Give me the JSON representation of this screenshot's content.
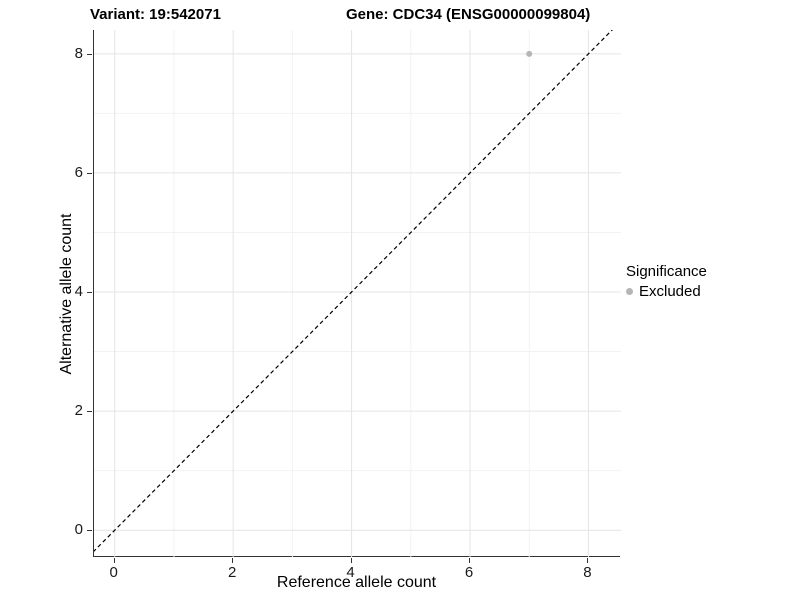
{
  "header": {
    "title_left": "Variant: 19:542071",
    "title_right": "Gene: CDC34 (ENSG00000099804)"
  },
  "chart_data": {
    "type": "scatter",
    "title_left": "Variant: 19:542071",
    "title_right": "Gene: CDC34 (ENSG00000099804)",
    "xlabel": "Reference allele count",
    "ylabel": "Alternative allele count",
    "xlim": [
      -0.35,
      8.55
    ],
    "ylim": [
      -0.45,
      8.4
    ],
    "x_ticks": [
      0,
      2,
      4,
      6,
      8
    ],
    "y_ticks": [
      0,
      2,
      4,
      6,
      8
    ],
    "x_minor_ticks": [
      1,
      3,
      5,
      7
    ],
    "y_minor_ticks": [
      1,
      3,
      5,
      7
    ],
    "grid": true,
    "grid_major_color": "#e4e4e4",
    "grid_minor_color": "#f2f2f2",
    "identity_line": {
      "style": "dashed",
      "color": "#000000",
      "slope": 1,
      "intercept": 0
    },
    "series": [
      {
        "name": "Excluded",
        "color": "#b5b5b5",
        "points": [
          {
            "x": 7,
            "y": 8
          }
        ]
      }
    ],
    "legend": {
      "title": "Significance",
      "position": "right",
      "entries": [
        {
          "label": "Excluded",
          "color": "#b5b5b5"
        }
      ]
    }
  }
}
